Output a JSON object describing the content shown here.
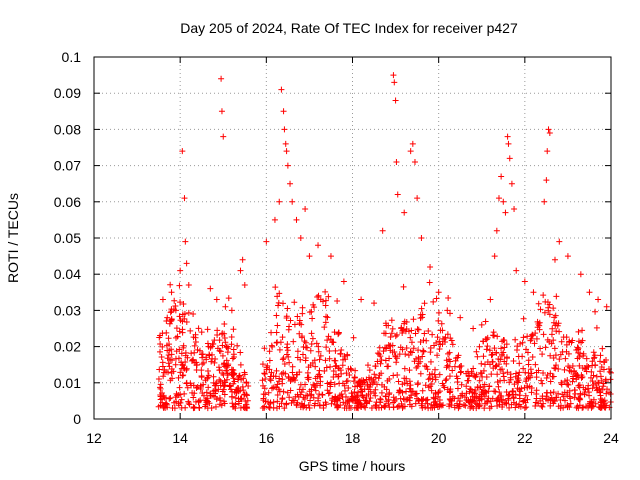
{
  "chart_data": {
    "type": "scatter",
    "title": "Day 205 of 2024, Rate Of TEC Index for receiver p427",
    "xlabel": "GPS time / hours",
    "ylabel": "ROTI / TECUs",
    "xlim": [
      12,
      24
    ],
    "ylim": [
      0,
      0.1
    ],
    "xticks": [
      "12",
      "14",
      "16",
      "18",
      "20",
      "22",
      "24"
    ],
    "yticks": [
      "0",
      "0.01",
      "0.02",
      "0.03",
      "0.04",
      "0.05",
      "0.06",
      "0.07",
      "0.08",
      "0.09",
      "0.1"
    ],
    "grid": true,
    "marker": "+",
    "color": "#ff0000",
    "series": [
      {
        "name": "ROTI",
        "points": [
          [
            13.6,
            0.033
          ],
          [
            13.7,
            0.028
          ],
          [
            13.8,
            0.035
          ],
          [
            13.9,
            0.03
          ],
          [
            14.0,
            0.041
          ],
          [
            14.05,
            0.074
          ],
          [
            14.1,
            0.061
          ],
          [
            14.12,
            0.049
          ],
          [
            14.15,
            0.043
          ],
          [
            14.2,
            0.037
          ],
          [
            14.3,
            0.029
          ],
          [
            14.5,
            0.024
          ],
          [
            14.7,
            0.036
          ],
          [
            14.85,
            0.033
          ],
          [
            14.95,
            0.094
          ],
          [
            14.97,
            0.085
          ],
          [
            15.0,
            0.078
          ],
          [
            15.05,
            0.031
          ],
          [
            15.2,
            0.03
          ],
          [
            15.4,
            0.041
          ],
          [
            15.45,
            0.044
          ],
          [
            15.5,
            0.037
          ],
          [
            16.0,
            0.049
          ],
          [
            16.2,
            0.055
          ],
          [
            16.3,
            0.06
          ],
          [
            16.35,
            0.091
          ],
          [
            16.4,
            0.085
          ],
          [
            16.42,
            0.08
          ],
          [
            16.45,
            0.076
          ],
          [
            16.47,
            0.074
          ],
          [
            16.5,
            0.07
          ],
          [
            16.55,
            0.065
          ],
          [
            16.6,
            0.06
          ],
          [
            16.7,
            0.055
          ],
          [
            16.8,
            0.05
          ],
          [
            16.9,
            0.058
          ],
          [
            17.0,
            0.045
          ],
          [
            17.2,
            0.048
          ],
          [
            17.5,
            0.045
          ],
          [
            17.8,
            0.038
          ],
          [
            18.2,
            0.033
          ],
          [
            18.5,
            0.032
          ],
          [
            18.7,
            0.052
          ],
          [
            18.95,
            0.095
          ],
          [
            18.97,
            0.093
          ],
          [
            19.0,
            0.088
          ],
          [
            19.02,
            0.071
          ],
          [
            19.05,
            0.062
          ],
          [
            19.2,
            0.057
          ],
          [
            19.35,
            0.074
          ],
          [
            19.4,
            0.076
          ],
          [
            19.45,
            0.071
          ],
          [
            19.5,
            0.061
          ],
          [
            19.6,
            0.05
          ],
          [
            19.8,
            0.042
          ],
          [
            20.0,
            0.035
          ],
          [
            20.2,
            0.03
          ],
          [
            20.5,
            0.028
          ],
          [
            20.8,
            0.025
          ],
          [
            21.0,
            0.026
          ],
          [
            21.2,
            0.033
          ],
          [
            21.3,
            0.045
          ],
          [
            21.35,
            0.052
          ],
          [
            21.4,
            0.061
          ],
          [
            21.45,
            0.067
          ],
          [
            21.5,
            0.06
          ],
          [
            21.55,
            0.057
          ],
          [
            21.6,
            0.078
          ],
          [
            21.62,
            0.076
          ],
          [
            21.65,
            0.072
          ],
          [
            21.7,
            0.065
          ],
          [
            21.75,
            0.058
          ],
          [
            21.8,
            0.041
          ],
          [
            22.0,
            0.038
          ],
          [
            22.2,
            0.035
          ],
          [
            22.45,
            0.06
          ],
          [
            22.5,
            0.066
          ],
          [
            22.52,
            0.074
          ],
          [
            22.55,
            0.08
          ],
          [
            22.58,
            0.079
          ],
          [
            22.7,
            0.044
          ],
          [
            22.8,
            0.049
          ],
          [
            23.0,
            0.045
          ],
          [
            23.3,
            0.04
          ],
          [
            23.5,
            0.035
          ],
          [
            23.7,
            0.033
          ],
          [
            23.9,
            0.031
          ]
        ]
      }
    ],
    "dense_band": {
      "description": "dense cluster of low ROTI observations",
      "x_range": [
        13.5,
        24
      ],
      "gap_x_range": [
        15.58,
        15.9
      ],
      "y_min": 0.003
    }
  }
}
